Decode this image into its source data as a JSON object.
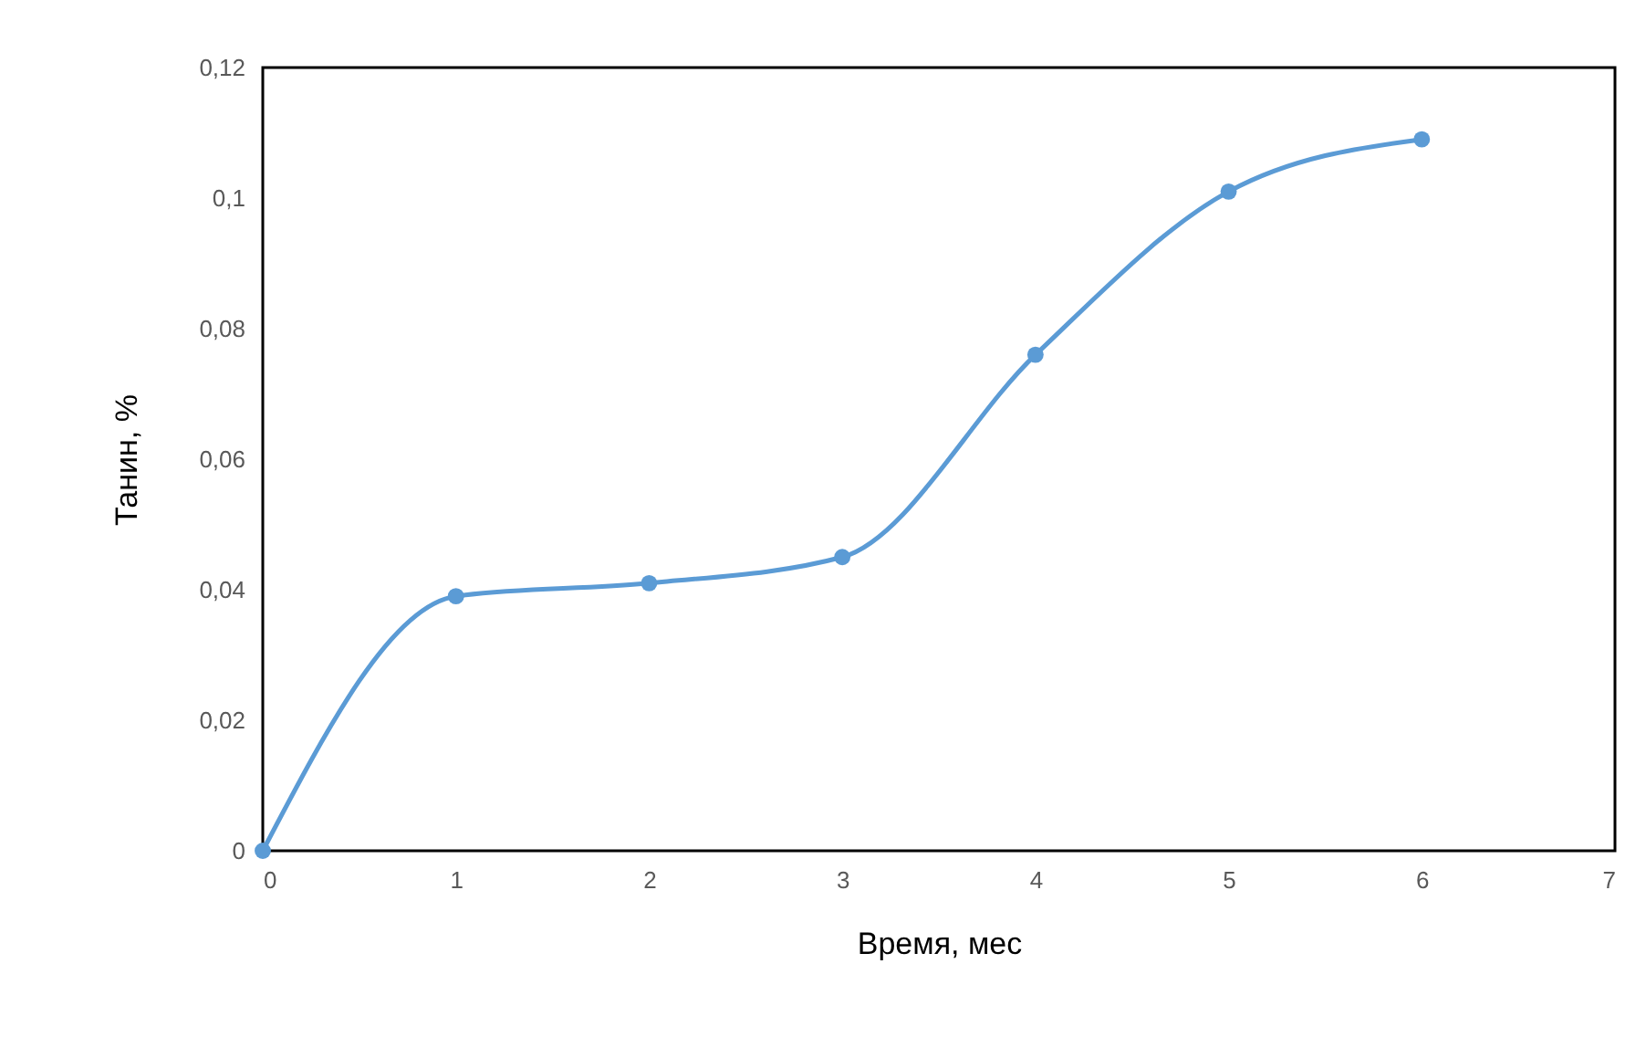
{
  "chart_data": {
    "type": "line",
    "xlabel": "Время, мес",
    "ylabel": "Танин, %",
    "x": [
      0,
      1,
      2,
      3,
      4,
      5,
      6
    ],
    "series": [
      {
        "color": "#5b9bd5",
        "values": [
          0,
          0.039,
          0.041,
          0.045,
          0.076,
          0.101,
          0.109
        ]
      }
    ],
    "xlim": [
      0,
      7
    ],
    "xticks": [
      0,
      1,
      2,
      3,
      4,
      5,
      6,
      7
    ],
    "ylim": [
      0,
      0.12
    ],
    "yticks": [
      0,
      {
        "value": 0.02,
        "label": "0,02"
      },
      {
        "value": 0.04,
        "label": "0,04"
      },
      {
        "value": 0.06,
        "label": "0,06"
      },
      {
        "value": 0.08,
        "label": "0,08"
      },
      {
        "value": 0.1,
        "label": "0,1"
      },
      {
        "value": 0.12,
        "label": "0,12"
      }
    ],
    "grid": false,
    "legend": false,
    "marker": "circle",
    "line_style": "solid"
  }
}
